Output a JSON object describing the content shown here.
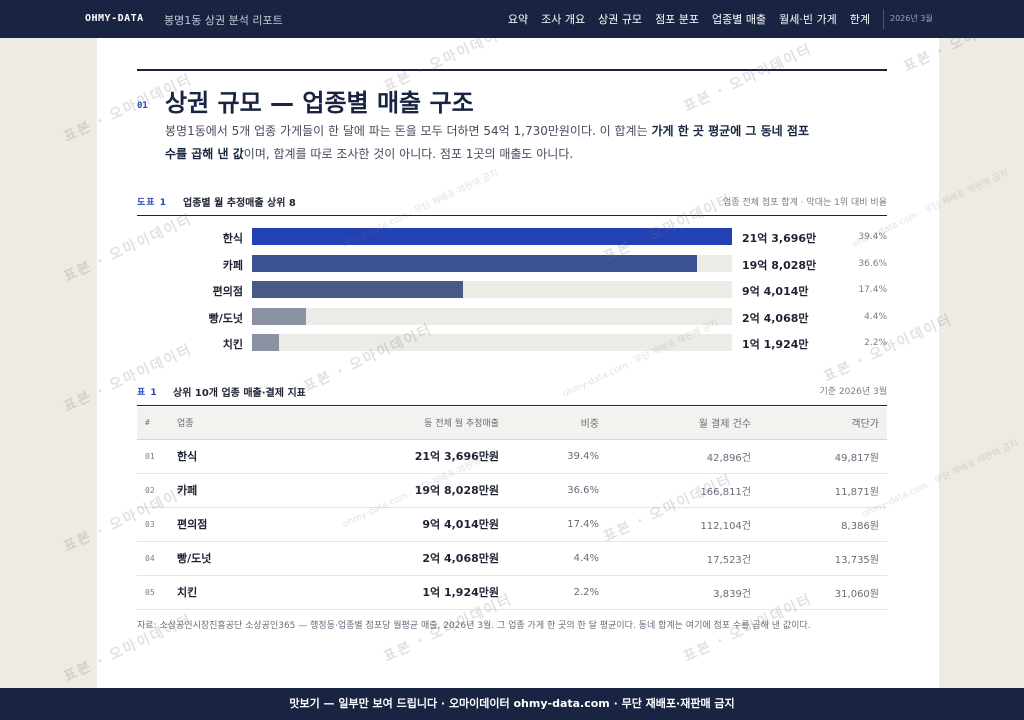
{
  "topbar": {
    "brand": "OHMY-DATA",
    "report_title": "봉명1동 상권 분석 리포트",
    "nav": [
      "요약",
      "조사 개요",
      "상권 규모",
      "점포 분포",
      "업종별 매출",
      "월세·빈 가게",
      "한계"
    ],
    "date": "2026년 3월"
  },
  "section": {
    "number": "01",
    "title": "상권 규모 — 업종별 매출 구조",
    "lede_1": "봉명1동에서 5개 업종 가게들이 한 달에 파는 돈을 모두 더하면 54억 1,730만원이다. 이 합계는 ",
    "lede_bold": "가게 한 곳 평균에 그 동네 점포 수를 곱해 낸 값",
    "lede_2": "이며, 합계를 따로 조사한 것이 아니다. 점포 1곳의 매출도 아니다."
  },
  "figure": {
    "label": "도표 1",
    "title": "업종별 월 추정매출 상위 8",
    "note": "업종 전체 점포 합계 · 막대는 1위 대비 비율"
  },
  "chart_data": {
    "type": "bar",
    "orientation": "horizontal",
    "title": "업종별 월 추정매출 상위 8",
    "categories": [
      "한식",
      "카페",
      "편의점",
      "빵/도넛",
      "치킨"
    ],
    "values": [
      2136.96,
      1980.28,
      940.14,
      240.68,
      119.24
    ],
    "value_labels": [
      "21억 3,696만",
      "19억 8,028만",
      "9억 4,014만",
      "2억 4,068만",
      "1억 1,924만"
    ],
    "shares": [
      "39.4%",
      "36.6%",
      "17.4%",
      "4.4%",
      "2.2%"
    ],
    "colors": [
      "#2341b5",
      "#3a5291",
      "#4a5a86",
      "#8a92a3",
      "#8a92a3"
    ],
    "ylim": [
      0,
      2136.96
    ],
    "grid": false,
    "legend": "none"
  },
  "table": {
    "label": "표 1",
    "title": "상위 10개 업종 매출·결제 지표",
    "note": "기준 2026년 3월",
    "headers": [
      "#",
      "업종",
      "동 전체 월 추정매출",
      "비중",
      "월 결제 건수",
      "객단가"
    ],
    "rows": [
      [
        "01",
        "한식",
        "21억 3,696만원",
        "39.4%",
        "42,896건",
        "49,817원"
      ],
      [
        "02",
        "카페",
        "19억 8,028만원",
        "36.6%",
        "166,811건",
        "11,871원"
      ],
      [
        "03",
        "편의점",
        "9억 4,014만원",
        "17.4%",
        "112,104건",
        "8,386원"
      ],
      [
        "04",
        "빵/도넛",
        "2억 4,068만원",
        "4.4%",
        "17,523건",
        "13,735원"
      ],
      [
        "05",
        "치킨",
        "1억 1,924만원",
        "2.2%",
        "3,839건",
        "31,060원"
      ]
    ]
  },
  "source": "자료: 소상공인시장진흥공단 소상공인365 — 행정동·업종별 점포당 월평균 매출, 2026년 3월. 그 업종 가게 한 곳의 한 달 평균이다. 동네 합계는 여기에 점포 수를 곱해 낸 값이다.",
  "footer": "맛보기 — 일부만 보여 드립니다 · 오마이데이터 ohmy-data.com · 무단 재배포·재판매 금지",
  "watermark": {
    "big": "표본 · 오마이데이터",
    "small": "ohmy-data.com · 무단 재배포·재판매 금지"
  }
}
